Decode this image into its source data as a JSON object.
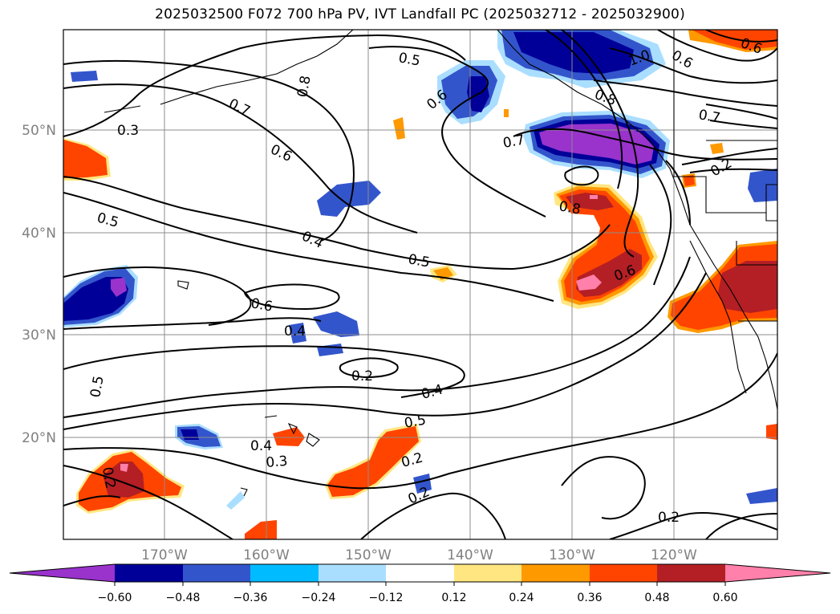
{
  "title": "2025032500 F072 700 hPa PV, IVT Landfall PC (2025032712 - 2025032900)",
  "map": {
    "lat_labels": [
      "50°N",
      "40°N",
      "30°N",
      "20°N"
    ],
    "lon_labels": [
      "170°W",
      "160°W",
      "150°W",
      "140°W",
      "130°W",
      "120°W"
    ],
    "contour_labels": [
      "0.3",
      "0.7",
      "0.8",
      "0.5",
      "0.6",
      "1.0",
      "0.6",
      "0.6",
      "0.7",
      "0.7",
      "0.8",
      "0.6",
      "0.5",
      "0.4",
      "0.5",
      "0.8",
      "0.6",
      "0.6",
      "0.4",
      "0.2",
      "0.5",
      "0.4",
      "0.5",
      "0.4",
      "0.3",
      "0.2",
      "0.2",
      "0.2",
      "0.2",
      "0.2"
    ],
    "colors": {
      "line": "#000000",
      "grid": "#8c8c8c",
      "tick_label": "#808080"
    }
  },
  "colorbar": {
    "ticks": [
      "−0.60",
      "−0.48",
      "−0.36",
      "−0.24",
      "−0.12",
      "0.12",
      "0.24",
      "0.36",
      "0.48",
      "0.60"
    ],
    "colors": [
      "#9933cc",
      "#000099",
      "#3355cc",
      "#00bbff",
      "#aadeff",
      "#ffffff",
      "#ffe680",
      "#ff9900",
      "#ff4400",
      "#b31f24",
      "#ff80aa"
    ]
  }
}
